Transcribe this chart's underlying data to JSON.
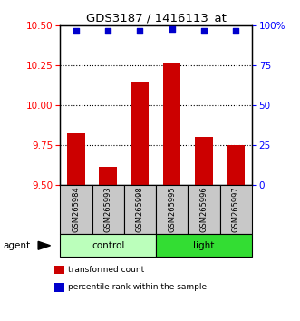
{
  "title": "GDS3187 / 1416113_at",
  "samples": [
    "GSM265984",
    "GSM265993",
    "GSM265998",
    "GSM265995",
    "GSM265996",
    "GSM265997"
  ],
  "bar_values": [
    9.82,
    9.61,
    10.15,
    10.26,
    9.8,
    9.75
  ],
  "percentile_values": [
    97,
    97,
    97,
    98,
    97,
    97
  ],
  "groups": [
    {
      "label": "control",
      "indices": [
        0,
        1,
        2
      ],
      "color_light": "#ccffcc",
      "color_dark": "#44ee44"
    },
    {
      "label": "light",
      "indices": [
        3,
        4,
        5
      ],
      "color_light": "#44ee44",
      "color_dark": "#00cc00"
    }
  ],
  "ylim_left": [
    9.5,
    10.5
  ],
  "yticks_left": [
    9.5,
    9.75,
    10.0,
    10.25,
    10.5
  ],
  "yticks_right": [
    0,
    25,
    50,
    75,
    100
  ],
  "bar_color": "#cc0000",
  "dot_color": "#0000cc",
  "bar_width": 0.55,
  "legend_items": [
    {
      "color": "#cc0000",
      "label": "transformed count"
    },
    {
      "color": "#0000cc",
      "label": "percentile rank within the sample"
    }
  ],
  "agent_label": "agent",
  "label_box_color": "#c8c8c8",
  "group_colors": [
    "#bbffbb",
    "#33dd33"
  ]
}
